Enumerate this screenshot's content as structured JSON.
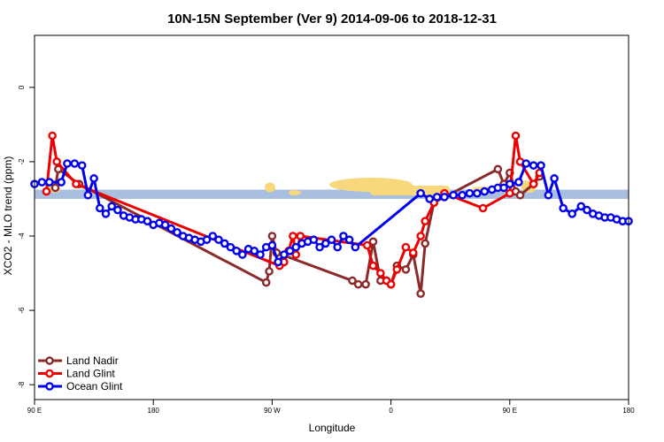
{
  "chart_data": {
    "type": "line",
    "title": "10N-15N September (Ver 9)   2014-09-06 to 2018-12-31",
    "xlabel": "Longitude",
    "ylabel": "XCO2 - MLO trend (ppm)",
    "xlim": [
      90,
      490
    ],
    "ylim": [
      -8.4,
      1.4
    ],
    "x_ticks": [
      {
        "value": 90,
        "label": "90 E"
      },
      {
        "value": 170,
        "label": "180"
      },
      {
        "value": 250,
        "label": "90 W"
      },
      {
        "value": 330,
        "label": "0"
      },
      {
        "value": 410,
        "label": "90 E"
      },
      {
        "value": 490,
        "label": "180"
      }
    ],
    "y_ticks": [
      {
        "value": 0,
        "label": "0"
      },
      {
        "value": -2,
        "label": "-2"
      },
      {
        "value": -4,
        "label": "-4"
      },
      {
        "value": -6,
        "label": "-6"
      },
      {
        "value": -8,
        "label": "-8"
      }
    ],
    "band": {
      "y_min": -3.0,
      "y_max": -2.75,
      "color": "#a8bfe0"
    },
    "colors": {
      "land_nadir": "#8b2a2a",
      "land_glint": "#ee0000",
      "ocean_glint": "#0000ee",
      "band_fill": "#a8bfe0",
      "land_fill": "#f7d87c"
    },
    "legend": {
      "position": "bottom-left",
      "entries": [
        "Land Nadir",
        "Land Glint",
        "Ocean Glint"
      ]
    },
    "series": [
      {
        "name": "Land Nadir",
        "x": [
          104,
          106,
          120,
          246,
          248,
          250,
          253,
          304,
          308,
          313,
          318,
          323,
          327,
          330,
          334,
          340,
          345,
          350,
          353,
          359,
          402,
          406,
          410,
          414,
          417,
          426,
          430
        ],
        "y": [
          -2.7,
          -2.2,
          -2.6,
          -5.25,
          -4.95,
          -4.0,
          -4.45,
          -5.2,
          -5.3,
          -5.3,
          -4.15,
          -5.2,
          -5.2,
          -5.3,
          -4.8,
          -4.9,
          -4.5,
          -5.55,
          -4.2,
          -3.1,
          -2.2,
          -2.6,
          -2.3,
          -2.8,
          -2.9,
          -2.6,
          -2.4
        ]
      },
      {
        "name": "Land Glint",
        "x": [
          98,
          102,
          105,
          118,
          255,
          258,
          261,
          264,
          266,
          269,
          314,
          318,
          323,
          327,
          330,
          334,
          340,
          345,
          350,
          353,
          359,
          366,
          392,
          410,
          414,
          417,
          426,
          430
        ],
        "y": [
          -2.8,
          -1.3,
          -2.0,
          -2.6,
          -4.8,
          -4.7,
          -4.4,
          -4.0,
          -4.5,
          -4.0,
          -4.25,
          -4.8,
          -5.0,
          -5.2,
          -5.3,
          -4.9,
          -4.3,
          -4.45,
          -4.0,
          -3.6,
          -3.1,
          -2.85,
          -3.25,
          -2.85,
          -1.3,
          -2.0,
          -2.6,
          -2.3
        ]
      },
      {
        "name": "Ocean Glint",
        "x": [
          90,
          95,
          100,
          108,
          112,
          117,
          122,
          126,
          130,
          134,
          138,
          142,
          146,
          150,
          154,
          158,
          162,
          166,
          170,
          174,
          178,
          182,
          186,
          190,
          194,
          198,
          202,
          206,
          210,
          214,
          218,
          222,
          226,
          230,
          234,
          238,
          242,
          246,
          250,
          254,
          258,
          262,
          266,
          270,
          274,
          278,
          282,
          286,
          290,
          294,
          298,
          302,
          306,
          350,
          356,
          361,
          366,
          372,
          378,
          383,
          388,
          393,
          398,
          402,
          406,
          410,
          416,
          421,
          426,
          431,
          436,
          440,
          446,
          452,
          458,
          462,
          466,
          470,
          474,
          478,
          482,
          486,
          490
        ],
        "y": [
          -2.6,
          -2.55,
          -2.55,
          -2.55,
          -2.05,
          -2.05,
          -2.1,
          -2.9,
          -2.45,
          -3.25,
          -3.4,
          -3.2,
          -3.3,
          -3.45,
          -3.5,
          -3.55,
          -3.55,
          -3.6,
          -3.7,
          -3.65,
          -3.7,
          -3.8,
          -3.9,
          -4.0,
          -4.05,
          -4.1,
          -4.15,
          -4.1,
          -4.0,
          -4.1,
          -4.2,
          -4.3,
          -4.4,
          -4.5,
          -4.35,
          -4.4,
          -4.5,
          -4.3,
          -4.25,
          -4.7,
          -4.5,
          -4.4,
          -4.3,
          -4.2,
          -4.15,
          -4.1,
          -4.3,
          -4.2,
          -4.1,
          -4.3,
          -4.0,
          -4.1,
          -4.3,
          -2.85,
          -3.0,
          -2.95,
          -2.95,
          -2.9,
          -2.9,
          -2.85,
          -2.85,
          -2.8,
          -2.75,
          -2.7,
          -2.7,
          -2.6,
          -2.55,
          -2.05,
          -2.1,
          -2.1,
          -2.9,
          -2.45,
          -3.25,
          -3.4,
          -3.2,
          -3.3,
          -3.4,
          -3.45,
          -3.5,
          -3.5,
          -3.55,
          -3.6,
          -3.6
        ]
      }
    ]
  }
}
